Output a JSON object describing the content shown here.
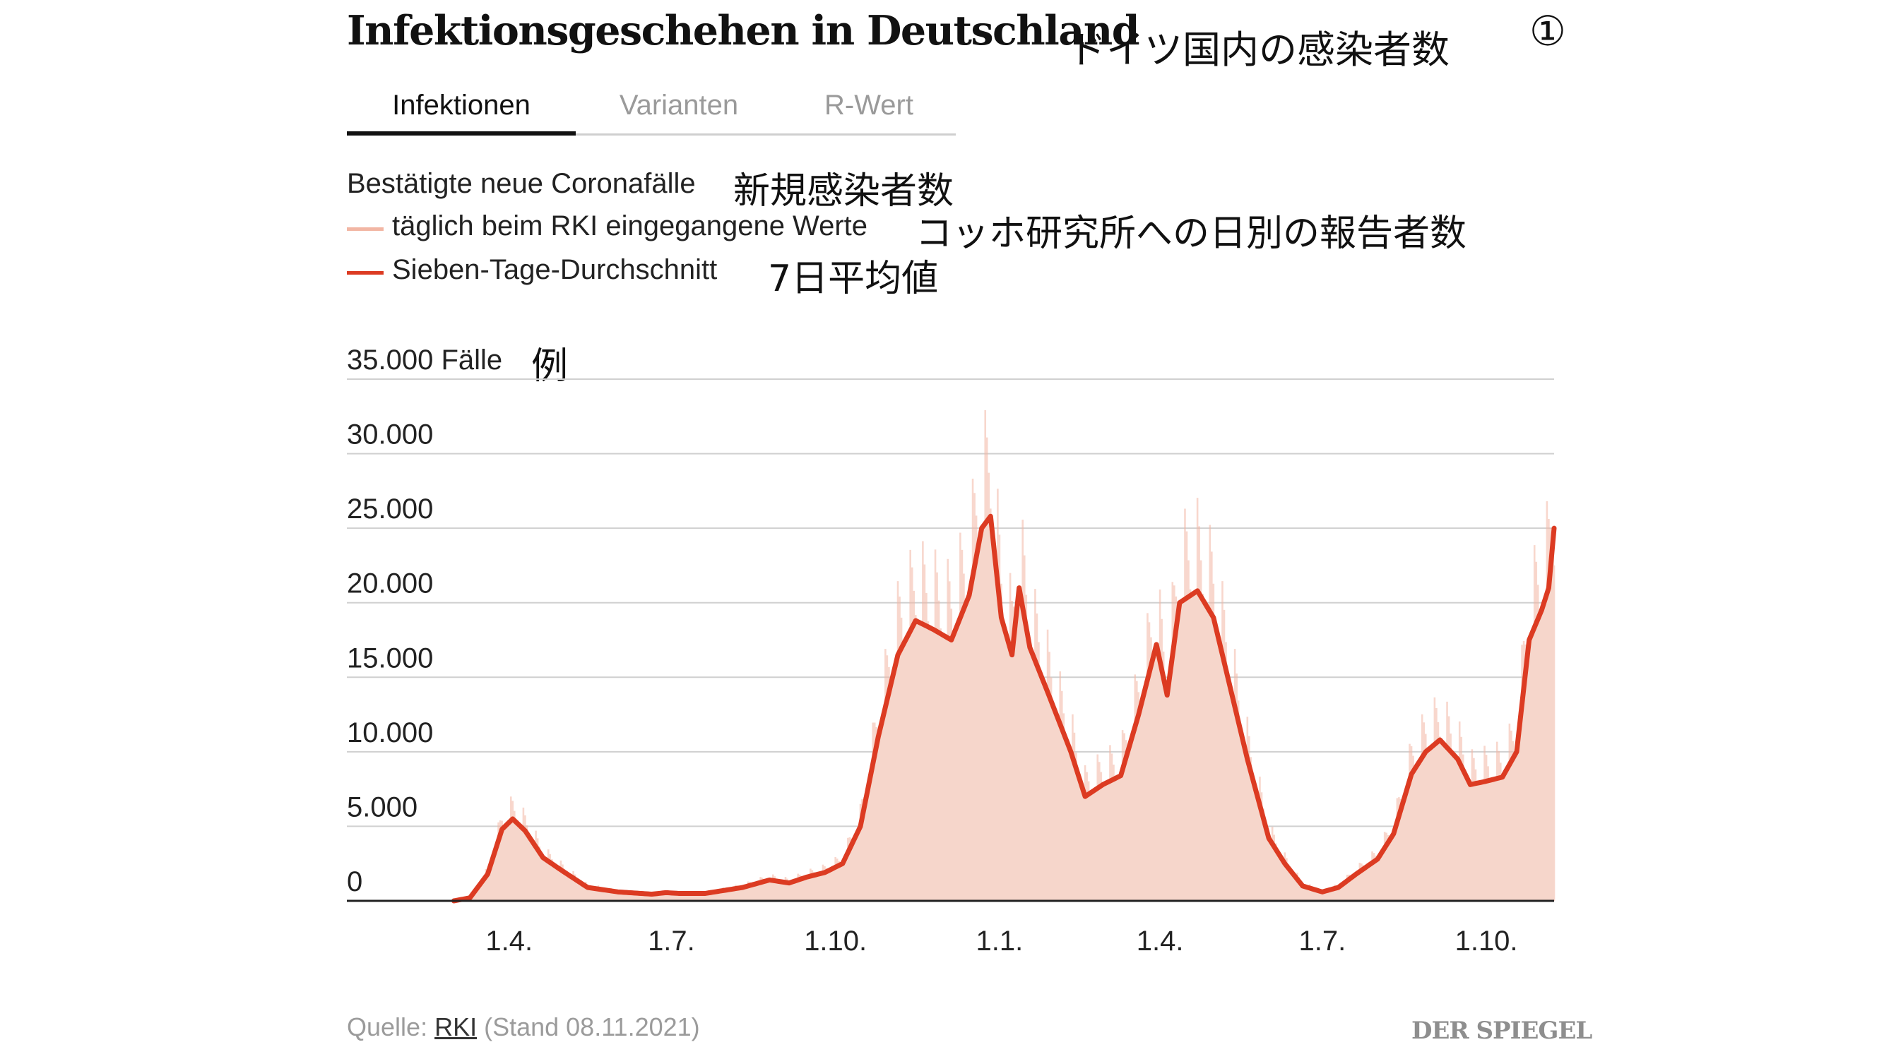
{
  "header": {
    "title": "Infektionsgeschehen in Deutschland",
    "title_jp": "ドイツ国内の感染者数",
    "number": "①"
  },
  "tabs": [
    {
      "label": "Infektionen",
      "active": true
    },
    {
      "label": "Varianten",
      "active": false
    },
    {
      "label": "R-Wert",
      "active": false
    }
  ],
  "subtitle": "Bestätigte neue Coronafälle",
  "subtitle_jp": "新規感染者数",
  "legend": [
    {
      "label": "täglich beim RKI eingegangene Werte",
      "label_jp": "コッホ研究所への日別の報告者数",
      "color": "#f2b6a4"
    },
    {
      "label": "Sieben-Tage-Durchschnitt",
      "label_jp": "7日平均値",
      "color": "#dc3b22"
    }
  ],
  "unit_jp": "例",
  "footer": {
    "prefix": "Quelle: ",
    "source": "RKI",
    "suffix": " (Stand 08.11.2021)",
    "brand": "DER SPIEGEL"
  },
  "colors": {
    "daily": "#f2b6a4",
    "daily_fill": "#f6d6cb",
    "average": "#dc3b22",
    "grid": "#d0d0d0",
    "axis": "#222222"
  },
  "chart_data": {
    "type": "area",
    "title": "",
    "xlabel": "",
    "ylabel": "",
    "ylim": [
      0,
      35000
    ],
    "y_ticks": [
      0,
      5000,
      10000,
      15000,
      20000,
      25000,
      30000,
      35000
    ],
    "y_tick_labels": [
      "0",
      "5.000",
      "10.000",
      "15.000",
      "20.000",
      "25.000",
      "30.000",
      "35.000 Fälle"
    ],
    "x_ticks": [
      "2020-04-01",
      "2020-07-01",
      "2020-10-01",
      "2021-01-01",
      "2021-04-01",
      "2021-07-01",
      "2021-10-01"
    ],
    "x_tick_labels": [
      "1.4.",
      "1.7.",
      "1.10.",
      "1.1.",
      "1.4.",
      "1.7.",
      "1.10."
    ],
    "xlim": [
      "2020-01-01",
      "2021-11-08"
    ],
    "grid": true,
    "legend_position": "top-left",
    "series": [
      {
        "name": "Sieben-Tage-Durchschnitt",
        "points": [
          [
            "2020-03-01",
            0
          ],
          [
            "2020-03-10",
            200
          ],
          [
            "2020-03-20",
            1800
          ],
          [
            "2020-03-28",
            4800
          ],
          [
            "2020-04-03",
            5500
          ],
          [
            "2020-04-10",
            4700
          ],
          [
            "2020-04-20",
            2900
          ],
          [
            "2020-05-01",
            2000
          ],
          [
            "2020-05-15",
            900
          ],
          [
            "2020-06-01",
            600
          ],
          [
            "2020-06-20",
            450
          ],
          [
            "2020-06-28",
            550
          ],
          [
            "2020-07-05",
            500
          ],
          [
            "2020-07-20",
            500
          ],
          [
            "2020-08-10",
            900
          ],
          [
            "2020-08-25",
            1400
          ],
          [
            "2020-09-05",
            1200
          ],
          [
            "2020-09-15",
            1600
          ],
          [
            "2020-09-25",
            1900
          ],
          [
            "2020-10-05",
            2500
          ],
          [
            "2020-10-15",
            5000
          ],
          [
            "2020-10-25",
            11000
          ],
          [
            "2020-11-05",
            16500
          ],
          [
            "2020-11-15",
            18800
          ],
          [
            "2020-11-25",
            18200
          ],
          [
            "2020-12-05",
            17500
          ],
          [
            "2020-12-15",
            20500
          ],
          [
            "2020-12-22",
            25000
          ],
          [
            "2020-12-27",
            25800
          ],
          [
            "2021-01-02",
            19000
          ],
          [
            "2021-01-08",
            16500
          ],
          [
            "2021-01-12",
            21000
          ],
          [
            "2021-01-18",
            17000
          ],
          [
            "2021-01-28",
            14000
          ],
          [
            "2021-02-10",
            10000
          ],
          [
            "2021-02-18",
            7000
          ],
          [
            "2021-02-28",
            7800
          ],
          [
            "2021-03-10",
            8400
          ],
          [
            "2021-03-20",
            12500
          ],
          [
            "2021-03-30",
            17200
          ],
          [
            "2021-04-05",
            13800
          ],
          [
            "2021-04-12",
            20000
          ],
          [
            "2021-04-22",
            20800
          ],
          [
            "2021-05-01",
            19000
          ],
          [
            "2021-05-10",
            14500
          ],
          [
            "2021-05-20",
            9500
          ],
          [
            "2021-06-01",
            4200
          ],
          [
            "2021-06-10",
            2500
          ],
          [
            "2021-06-20",
            1000
          ],
          [
            "2021-07-01",
            600
          ],
          [
            "2021-07-10",
            900
          ],
          [
            "2021-07-20",
            1800
          ],
          [
            "2021-08-01",
            2800
          ],
          [
            "2021-08-10",
            4500
          ],
          [
            "2021-08-20",
            8500
          ],
          [
            "2021-08-28",
            10000
          ],
          [
            "2021-09-05",
            10800
          ],
          [
            "2021-09-15",
            9500
          ],
          [
            "2021-09-22",
            7800
          ],
          [
            "2021-09-30",
            8000
          ],
          [
            "2021-10-10",
            8300
          ],
          [
            "2021-10-18",
            10000
          ],
          [
            "2021-10-25",
            17500
          ],
          [
            "2021-11-01",
            19500
          ],
          [
            "2021-11-05",
            21000
          ],
          [
            "2021-11-08",
            25000
          ]
        ]
      }
    ]
  }
}
